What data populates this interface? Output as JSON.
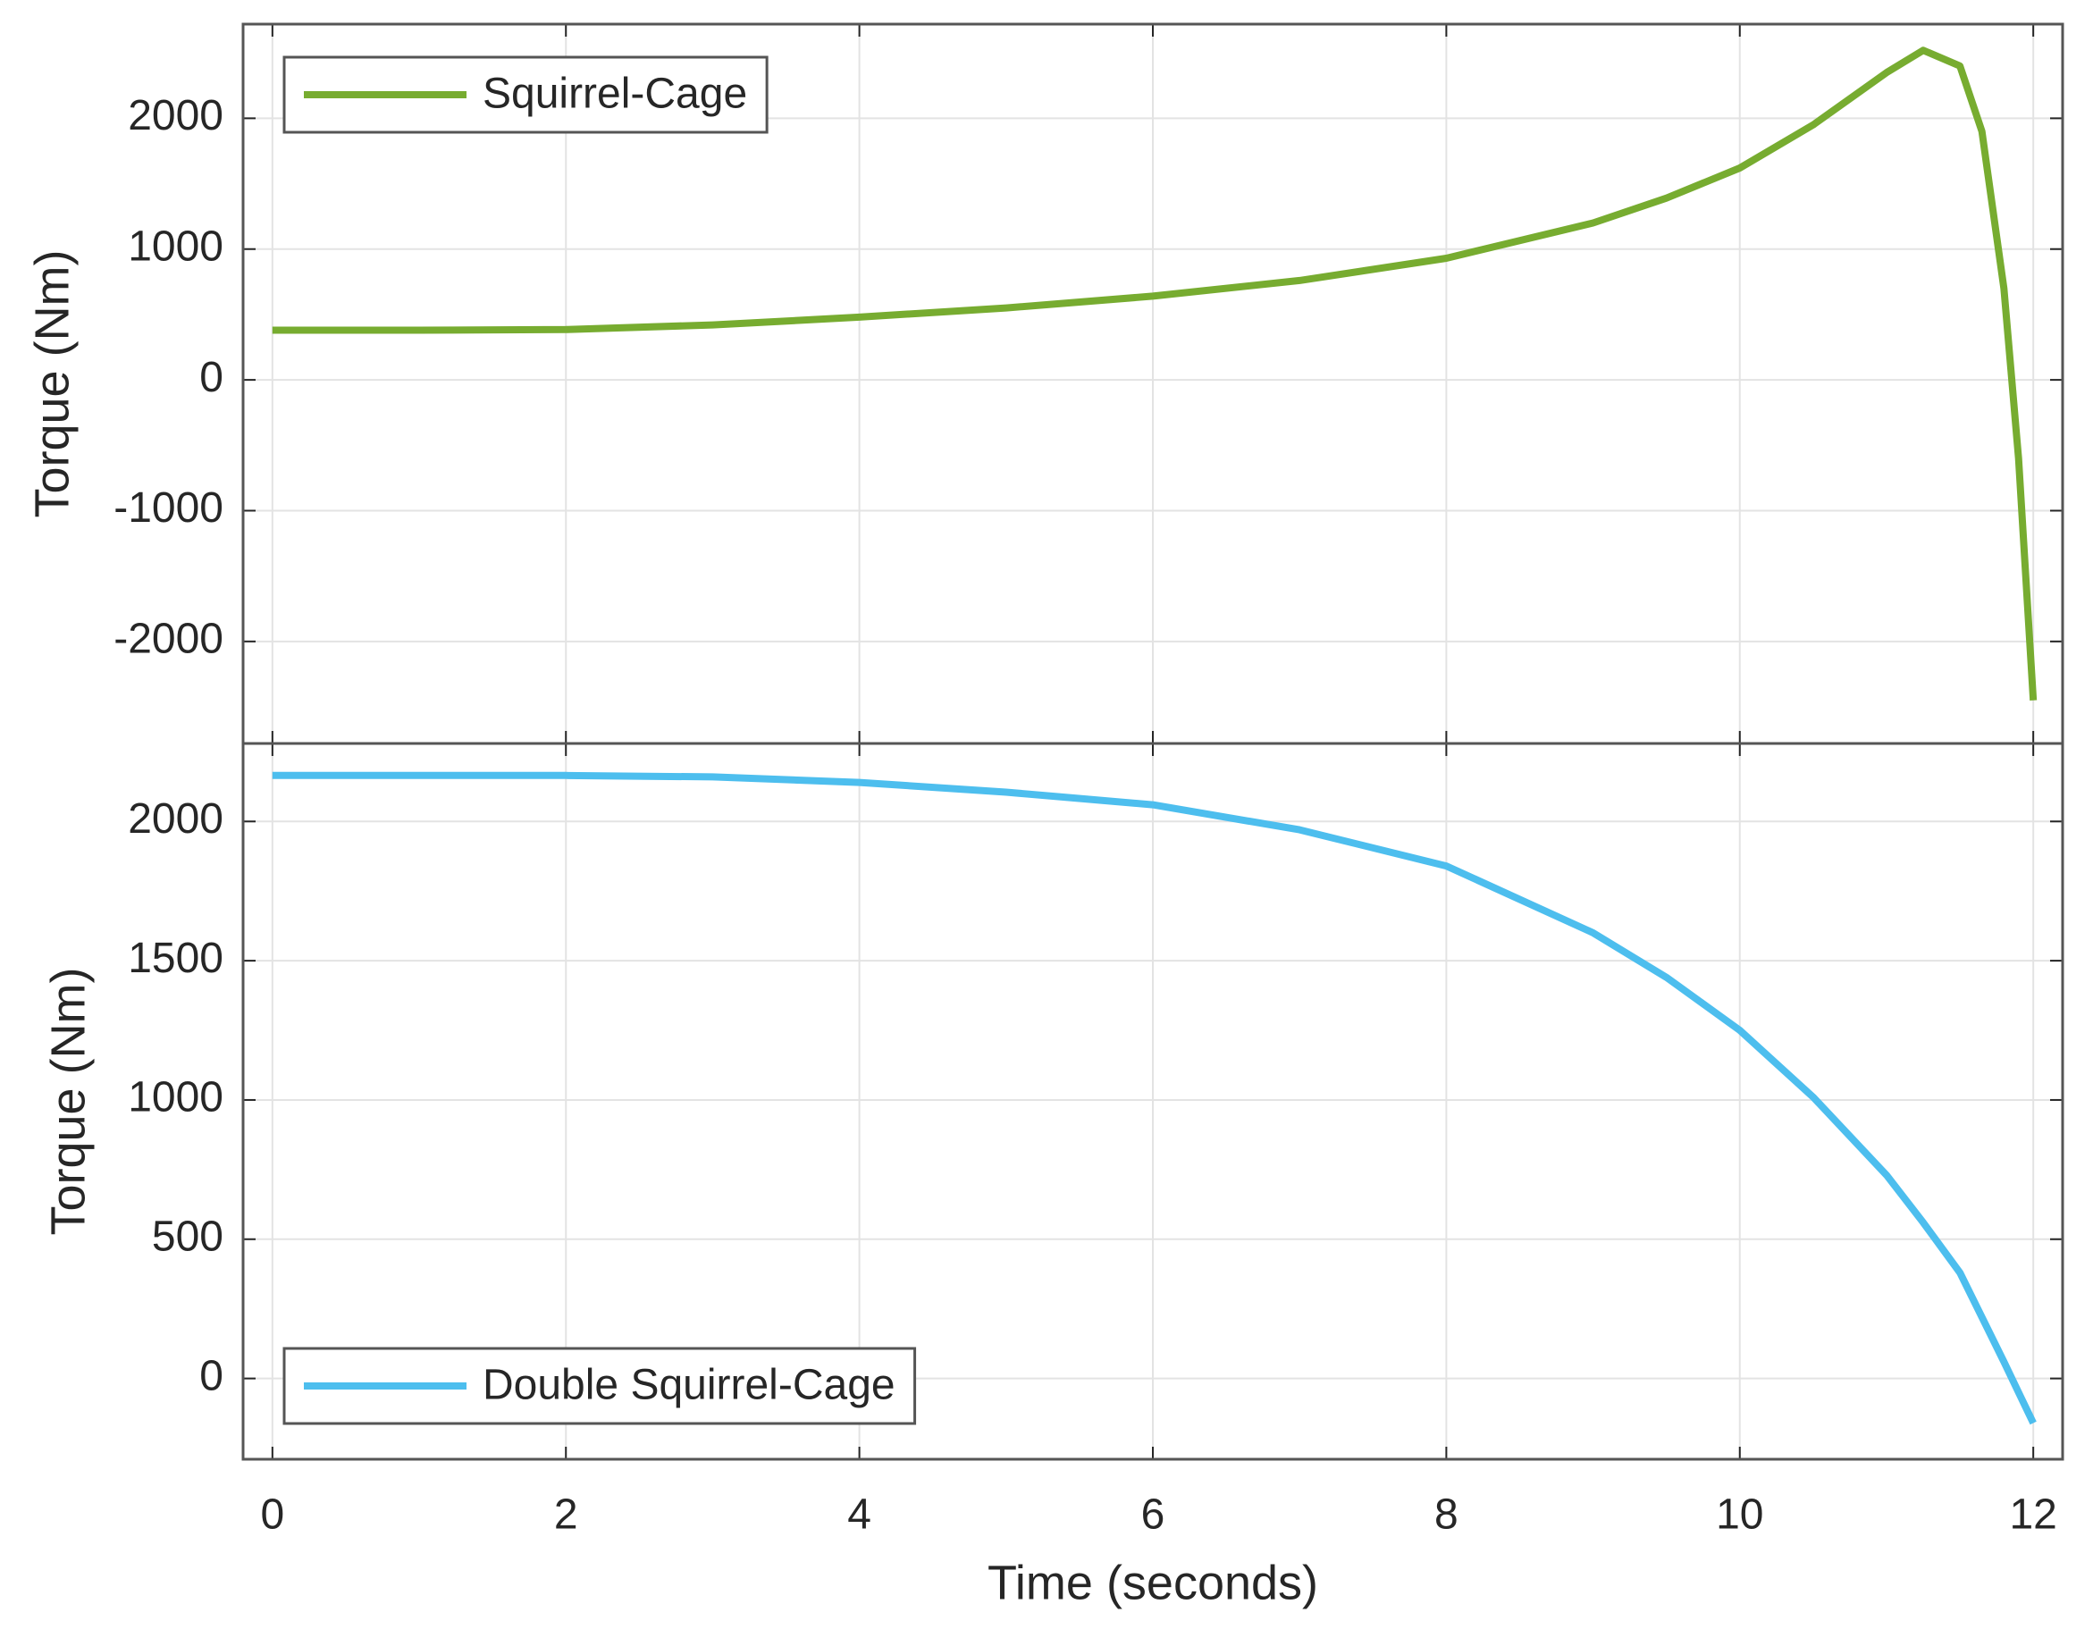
{
  "chart_data": [
    {
      "type": "line",
      "ylabel": "Torque (Nm)",
      "x": [
        0,
        1,
        2,
        3,
        4,
        5,
        6,
        7,
        8,
        9,
        9.5,
        10,
        10.5,
        11,
        11.25,
        11.5,
        11.65,
        11.8,
        11.9,
        12
      ],
      "series": [
        {
          "name": "Squirrel-Cage",
          "color": "#77ac30",
          "values": [
            380,
            380,
            385,
            420,
            480,
            550,
            640,
            760,
            930,
            1200,
            1390,
            1620,
            1950,
            2350,
            2520,
            2400,
            1900,
            700,
            -600,
            -2450
          ]
        }
      ],
      "xlim": [
        -0.2,
        12.2
      ],
      "xticks": [
        0,
        2,
        4,
        6,
        8,
        10,
        12
      ],
      "ylim": [
        -2780,
        2720
      ],
      "yticks": [
        -2000,
        -1000,
        0,
        1000,
        2000
      ],
      "grid": true,
      "legend": "upper left"
    },
    {
      "type": "line",
      "ylabel": "Torque (Nm)",
      "xlabel": "Time (seconds)",
      "x": [
        0,
        1,
        2,
        3,
        4,
        5,
        6,
        7,
        8,
        9,
        9.5,
        10,
        10.5,
        11,
        11.25,
        11.5,
        11.65,
        11.8,
        11.9,
        12
      ],
      "series": [
        {
          "name": "Double Squirrel-Cage",
          "color": "#4dbeee",
          "values": [
            2165,
            2165,
            2165,
            2160,
            2140,
            2105,
            2060,
            1970,
            1840,
            1600,
            1440,
            1250,
            1010,
            730,
            560,
            380,
            220,
            60,
            -50,
            -160
          ]
        }
      ],
      "xlim": [
        -0.2,
        12.2
      ],
      "xticks": [
        0,
        2,
        4,
        6,
        8,
        10,
        12
      ],
      "ylim": [
        -290,
        2280
      ],
      "yticks": [
        0,
        500,
        1000,
        1500,
        2000
      ],
      "grid": true,
      "legend": "lower left"
    }
  ]
}
